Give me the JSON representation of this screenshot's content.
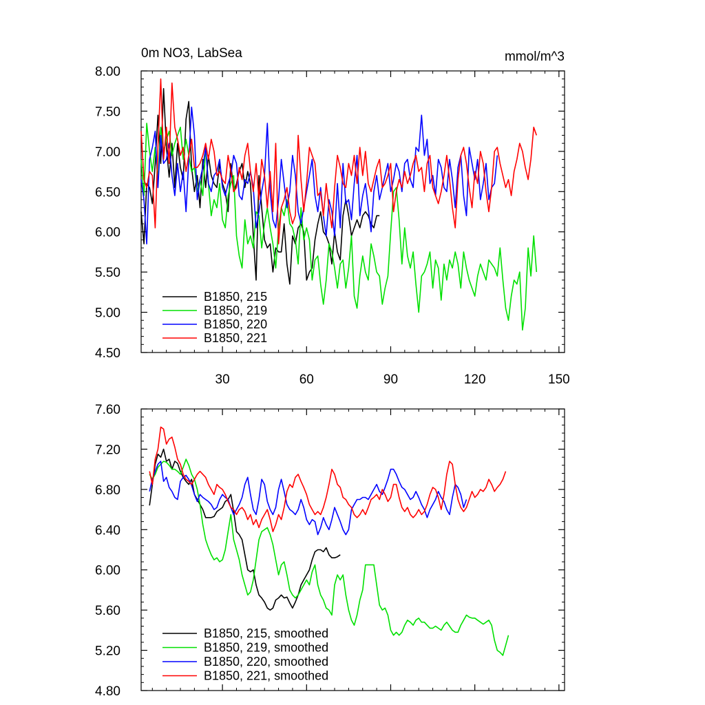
{
  "chart_data": [
    {
      "type": "line",
      "title": "0m NO3, LabSea",
      "units_label": "mmol/m^3",
      "xlim": [
        1,
        152
      ],
      "ylim": [
        4.5,
        8.0
      ],
      "xticks": [
        30,
        60,
        90,
        120,
        150
      ],
      "xtick_labels": [
        "30",
        "60",
        "90",
        "120",
        "150"
      ],
      "yticks": [
        4.5,
        5.0,
        5.5,
        6.0,
        6.5,
        7.0,
        7.5,
        8.0
      ],
      "ytick_labels": [
        "4.50",
        "5.00",
        "5.50",
        "6.00",
        "6.50",
        "7.00",
        "7.50",
        "8.00"
      ],
      "legend_position": "bottom-left",
      "series": [
        {
          "name": "B1850, 215",
          "color": "#000000",
          "x_start": 1,
          "values": [
            6.25,
            5.85,
            6.6,
            6.55,
            6.35,
            6.85,
            7.45,
            6.85,
            7.78,
            7.05,
            6.68,
            7.1,
            6.55,
            7.1,
            6.8,
            6.65,
            7.4,
            7.62,
            6.8,
            6.5,
            6.7,
            6.3,
            6.9,
            6.55,
            6.95,
            6.7,
            6.6,
            6.55,
            6.85,
            6.6,
            6.5,
            6.25,
            6.85,
            6.5,
            6.6,
            6.75,
            6.85,
            6.55,
            6.75,
            6.6,
            5.95,
            5.4,
            6.7,
            6.3,
            5.9,
            5.8,
            5.85,
            5.5,
            5.8,
            5.75,
            5.75,
            6.1,
            5.6,
            5.35,
            5.95,
            5.85,
            6.05,
            6.1,
            6.0,
            5.4,
            5.5,
            5.55,
            5.9,
            6.1,
            6.25,
            6.0,
            5.95,
            5.85,
            5.6,
            6.0,
            5.75,
            5.65,
            6.2,
            6.4,
            6.2,
            5.95,
            6.05,
            6.15,
            6.05,
            6.2,
            6.25,
            6.2,
            6.1,
            6.05,
            6.2,
            6.2
          ]
        },
        {
          "name": "B1850, 219",
          "color": "#00e000",
          "x_start": 1,
          "values": [
            6.9,
            6.45,
            7.35,
            7.0,
            6.75,
            7.05,
            6.65,
            7.3,
            7.0,
            7.15,
            7.25,
            6.95,
            7.1,
            7.2,
            7.3,
            6.9,
            7.15,
            6.95,
            6.75,
            6.8,
            6.5,
            6.65,
            6.45,
            7.05,
            6.6,
            6.2,
            6.4,
            6.3,
            6.6,
            6.15,
            6.05,
            6.45,
            6.6,
            6.7,
            5.95,
            5.7,
            5.55,
            6.15,
            5.85,
            5.95,
            5.8,
            6.25,
            6.2,
            5.8,
            6.1,
            6.3,
            6.05,
            5.85,
            5.55,
            6.05,
            6.3,
            6.2,
            6.4,
            6.1,
            6.05,
            5.9,
            5.6,
            6.3,
            5.9,
            6.05,
            5.9,
            5.4,
            5.65,
            5.7,
            5.35,
            5.1,
            5.4,
            5.85,
            5.75,
            5.55,
            5.3,
            5.6,
            5.65,
            5.3,
            5.55,
            5.95,
            5.2,
            5.05,
            5.45,
            5.7,
            5.5,
            5.4,
            5.85,
            5.7,
            5.5,
            5.45,
            5.1,
            5.3,
            5.45,
            6.0,
            6.5,
            6.55,
            6.15,
            5.6,
            6.05,
            5.7,
            5.55,
            5.75,
            5.35,
            5.0,
            5.45,
            5.5,
            5.6,
            5.75,
            5.3,
            5.65,
            5.55,
            5.15,
            5.6,
            5.4,
            5.65,
            5.55,
            5.75,
            5.6,
            5.3,
            5.75,
            5.55,
            5.4,
            5.3,
            5.2,
            5.45,
            5.6,
            5.5,
            5.4,
            5.65,
            5.6,
            5.55,
            5.45,
            5.8,
            5.4,
            5.05,
            4.9,
            5.2,
            5.4,
            5.35,
            5.5,
            4.78,
            5.05,
            5.8,
            5.45,
            5.95,
            5.5
          ]
        },
        {
          "name": "B1850, 220",
          "color": "#0000ff",
          "x_start": 1,
          "values": [
            6.65,
            6.4,
            5.85,
            6.9,
            7.05,
            7.25,
            6.55,
            7.2,
            6.85,
            6.9,
            7.1,
            6.7,
            6.45,
            6.85,
            6.5,
            6.75,
            6.25,
            6.9,
            7.55,
            7.2,
            6.4,
            6.65,
            6.8,
            7.05,
            6.6,
            6.5,
            6.7,
            6.75,
            6.9,
            6.55,
            6.45,
            6.6,
            6.7,
            6.95,
            6.85,
            6.45,
            6.4,
            6.65,
            6.6,
            6.75,
            6.55,
            6.05,
            6.25,
            6.5,
            6.7,
            7.35,
            6.5,
            6.15,
            6.05,
            6.4,
            6.9,
            6.6,
            6.3,
            6.5,
            6.95,
            6.7,
            6.25,
            6.1,
            6.3,
            6.5,
            6.7,
            6.9,
            6.45,
            6.25,
            6.55,
            6.2,
            5.95,
            6.4,
            6.25,
            5.95,
            6.6,
            6.05,
            6.85,
            6.35,
            6.4,
            6.15,
            6.6,
            6.95,
            6.2,
            6.45,
            6.6,
            6.3,
            6.0,
            6.5,
            6.7,
            6.4,
            6.55,
            6.7,
            6.85,
            6.5,
            6.65,
            6.85,
            6.75,
            6.5,
            6.85,
            6.9,
            6.65,
            6.55,
            7.05,
            7.0,
            7.45,
            6.95,
            7.15,
            6.6,
            6.7,
            6.45,
            6.9,
            6.8,
            6.55,
            6.5,
            6.9,
            6.65,
            6.3,
            6.8,
            6.95,
            6.45,
            6.2,
            7.05,
            6.85,
            6.65,
            6.9,
            6.4,
            6.6,
            6.85,
            6.4,
            6.55,
            6.6,
            6.95
          ]
        },
        {
          "name": "B1850, 221",
          "color": "#ff0000",
          "x_start": 1,
          "values": [
            7.25,
            6.65,
            6.55,
            6.75,
            6.7,
            6.05,
            7.05,
            7.9,
            6.9,
            7.3,
            6.85,
            7.85,
            7.3,
            7.15,
            6.95,
            7.05,
            6.75,
            6.95,
            7.15,
            6.8,
            6.8,
            6.85,
            6.95,
            7.1,
            6.9,
            7.15,
            7.0,
            6.7,
            6.75,
            6.65,
            6.6,
            6.95,
            6.75,
            6.5,
            6.55,
            6.8,
            6.65,
            6.95,
            7.1,
            6.75,
            6.5,
            6.85,
            6.4,
            6.9,
            6.7,
            6.3,
            6.75,
            6.25,
            7.1,
            5.85,
            6.3,
            6.4,
            6.55,
            6.25,
            6.1,
            6.2,
            7.2,
            6.65,
            6.25,
            6.6,
            7.05,
            6.95,
            6.85,
            6.45,
            6.5,
            6.2,
            6.6,
            6.3,
            6.05,
            6.55,
            6.95,
            6.8,
            6.6,
            6.55,
            6.85,
            6.7,
            6.95,
            6.6,
            7.05,
            6.7,
            7.0,
            6.6,
            6.5,
            6.65,
            6.8,
            6.9,
            6.55,
            6.6,
            6.7,
            6.85,
            6.25,
            6.5,
            6.65,
            6.55,
            6.75,
            6.6,
            6.7,
            6.85,
            6.95,
            6.75,
            6.8,
            6.5,
            6.85,
            6.95,
            6.55,
            6.45,
            6.35,
            6.5,
            6.7,
            6.95,
            6.65,
            6.3,
            6.05,
            6.65,
            6.95,
            7.05,
            6.85,
            6.55,
            6.3,
            6.75,
            6.6,
            7.0,
            6.85,
            6.5,
            6.25,
            6.55,
            7.0,
            7.05,
            6.85,
            6.7,
            6.55,
            6.65,
            6.45,
            6.75,
            6.9,
            7.1,
            7.0,
            6.8,
            6.65,
            6.9,
            7.3,
            7.2
          ]
        }
      ]
    },
    {
      "type": "line",
      "title": "",
      "xlim": [
        1,
        152
      ],
      "ylim": [
        4.8,
        7.6
      ],
      "xticks": [
        30,
        60,
        90,
        120,
        150
      ],
      "yticks": [
        4.8,
        5.2,
        5.6,
        6.0,
        6.4,
        6.8,
        7.2,
        7.6
      ],
      "ytick_labels": [
        "4.80",
        "5.20",
        "5.60",
        "6.00",
        "6.40",
        "6.80",
        "7.20",
        "7.60"
      ],
      "legend_position": "bottom-left",
      "series": [
        {
          "name": "B1850, 215, smoothed",
          "color": "#000000",
          "x_start": 4,
          "values": [
            6.64,
            6.85,
            7.05,
            7.15,
            7.12,
            7.2,
            7.08,
            7.1,
            7.0,
            7.08,
            7.06,
            6.98,
            6.92,
            6.88,
            6.85,
            6.9,
            6.75,
            6.7,
            6.65,
            6.6,
            6.52,
            6.52,
            6.52,
            6.53,
            6.58,
            6.6,
            6.62,
            6.68,
            6.7,
            6.75,
            6.58,
            6.38,
            6.35,
            6.3,
            6.15,
            6.0,
            5.98,
            6.0,
            5.85,
            5.75,
            5.72,
            5.68,
            5.62,
            5.6,
            5.62,
            5.7,
            5.72,
            5.75,
            5.72,
            5.73,
            5.67,
            5.62,
            5.68,
            5.75,
            5.85,
            5.9,
            5.95,
            6.0,
            6.1,
            6.18,
            6.2,
            6.2,
            6.18,
            6.22,
            6.15,
            6.12,
            6.12,
            6.13,
            6.15
          ]
        },
        {
          "name": "B1850, 219, smoothed",
          "color": "#00e000",
          "x_start": 4,
          "values": [
            6.95,
            6.9,
            6.95,
            7.02,
            7.05,
            7.08,
            7.07,
            7.04,
            7.0,
            7.0,
            6.98,
            6.95,
            7.02,
            7.1,
            7.04,
            6.95,
            6.9,
            6.8,
            6.65,
            6.45,
            6.3,
            6.22,
            6.15,
            6.1,
            6.12,
            6.08,
            6.1,
            6.2,
            6.38,
            6.55,
            6.3,
            6.2,
            6.1,
            5.95,
            5.85,
            5.75,
            5.78,
            5.9,
            6.1,
            6.3,
            6.38,
            6.4,
            6.42,
            6.35,
            6.25,
            6.1,
            5.95,
            6.05,
            6.08,
            5.95,
            5.8,
            5.75,
            5.72,
            5.75,
            5.8,
            5.85,
            5.9,
            5.85,
            5.98,
            6.05,
            5.85,
            5.75,
            5.7,
            5.62,
            5.6,
            5.55,
            5.85,
            5.95,
            5.9,
            5.95,
            5.75,
            5.6,
            5.5,
            5.45,
            5.55,
            5.7,
            5.8,
            6.05,
            6.05,
            6.05,
            6.05,
            5.85,
            5.65,
            5.6,
            5.62,
            5.55,
            5.4,
            5.35,
            5.38,
            5.35,
            5.38,
            5.45,
            5.5,
            5.48,
            5.45,
            5.5,
            5.52,
            5.48,
            5.48,
            5.45,
            5.42,
            5.42,
            5.44,
            5.42,
            5.4,
            5.45,
            5.48,
            5.44,
            5.4,
            5.38,
            5.38,
            5.45,
            5.5,
            5.55,
            5.53,
            5.52,
            5.52,
            5.5,
            5.48,
            5.46,
            5.48,
            5.5,
            5.45,
            5.3,
            5.2,
            5.18,
            5.15,
            5.25,
            5.35
          ]
        },
        {
          "name": "B1850, 220, smoothed",
          "color": "#0000ff",
          "x_start": 4,
          "values": [
            6.78,
            6.9,
            6.98,
            7.05,
            7.08,
            6.88,
            6.92,
            6.82,
            6.78,
            6.72,
            6.7,
            6.88,
            6.92,
            6.94,
            6.9,
            6.84,
            6.75,
            6.68,
            6.75,
            6.72,
            6.7,
            6.68,
            6.65,
            6.6,
            6.62,
            6.7,
            6.75,
            6.72,
            6.7,
            6.62,
            6.55,
            6.6,
            6.65,
            6.72,
            6.85,
            6.92,
            6.75,
            6.6,
            6.55,
            6.7,
            6.9,
            6.85,
            6.68,
            6.6,
            6.55,
            6.62,
            6.8,
            6.9,
            6.78,
            6.65,
            6.6,
            6.58,
            6.55,
            6.6,
            6.7,
            6.62,
            6.5,
            6.45,
            6.5,
            6.48,
            6.35,
            6.42,
            6.52,
            6.45,
            6.4,
            6.5,
            6.62,
            6.55,
            6.48,
            6.4,
            6.35,
            6.4,
            6.6,
            6.65,
            6.7,
            6.7,
            6.72,
            6.72,
            6.7,
            6.75,
            6.8,
            6.85,
            6.78,
            6.75,
            6.82,
            6.9,
            7.0,
            7.0,
            6.95,
            6.88,
            6.82,
            6.8,
            6.75,
            6.7,
            6.72,
            6.78,
            6.72,
            6.65,
            6.6,
            6.52,
            6.6,
            6.65,
            6.7,
            6.78,
            6.72,
            6.68,
            6.6,
            6.55,
            6.72,
            6.85,
            6.82,
            6.75,
            6.62,
            6.7
          ]
        },
        {
          "name": "B1850, 221, smoothed",
          "color": "#ff0000",
          "x_start": 4,
          "values": [
            6.98,
            6.85,
            7.1,
            7.2,
            7.42,
            7.4,
            7.25,
            7.3,
            7.32,
            7.22,
            7.1,
            7.05,
            6.95,
            6.9,
            6.88,
            6.85,
            6.9,
            6.95,
            6.98,
            6.95,
            6.92,
            6.85,
            6.8,
            6.75,
            6.85,
            6.82,
            6.8,
            6.75,
            6.68,
            6.62,
            6.6,
            6.55,
            6.6,
            6.62,
            6.58,
            6.5,
            6.55,
            6.45,
            6.5,
            6.42,
            6.5,
            6.55,
            6.6,
            6.5,
            6.38,
            6.45,
            6.55,
            6.5,
            6.62,
            6.78,
            6.85,
            6.82,
            6.92,
            6.95,
            6.88,
            6.82,
            6.75,
            6.65,
            6.6,
            6.55,
            6.58,
            6.55,
            6.62,
            6.72,
            6.85,
            7.0,
            6.95,
            6.85,
            6.82,
            6.72,
            6.7,
            6.65,
            6.62,
            6.55,
            6.52,
            6.55,
            6.6,
            6.55,
            6.62,
            6.7,
            6.72,
            6.75,
            6.7,
            6.8,
            6.75,
            6.68,
            6.72,
            6.85,
            6.85,
            6.72,
            6.62,
            6.58,
            6.62,
            6.55,
            6.52,
            6.55,
            6.6,
            6.55,
            6.58,
            6.65,
            6.75,
            6.82,
            6.8,
            6.72,
            6.6,
            6.75,
            6.95,
            7.08,
            7.05,
            6.85,
            6.7,
            6.62,
            6.58,
            6.62,
            6.7,
            6.78,
            6.72,
            6.75,
            6.8,
            6.78,
            6.82,
            6.9,
            6.85,
            6.78,
            6.82,
            6.85,
            6.9,
            6.98
          ]
        }
      ]
    }
  ]
}
